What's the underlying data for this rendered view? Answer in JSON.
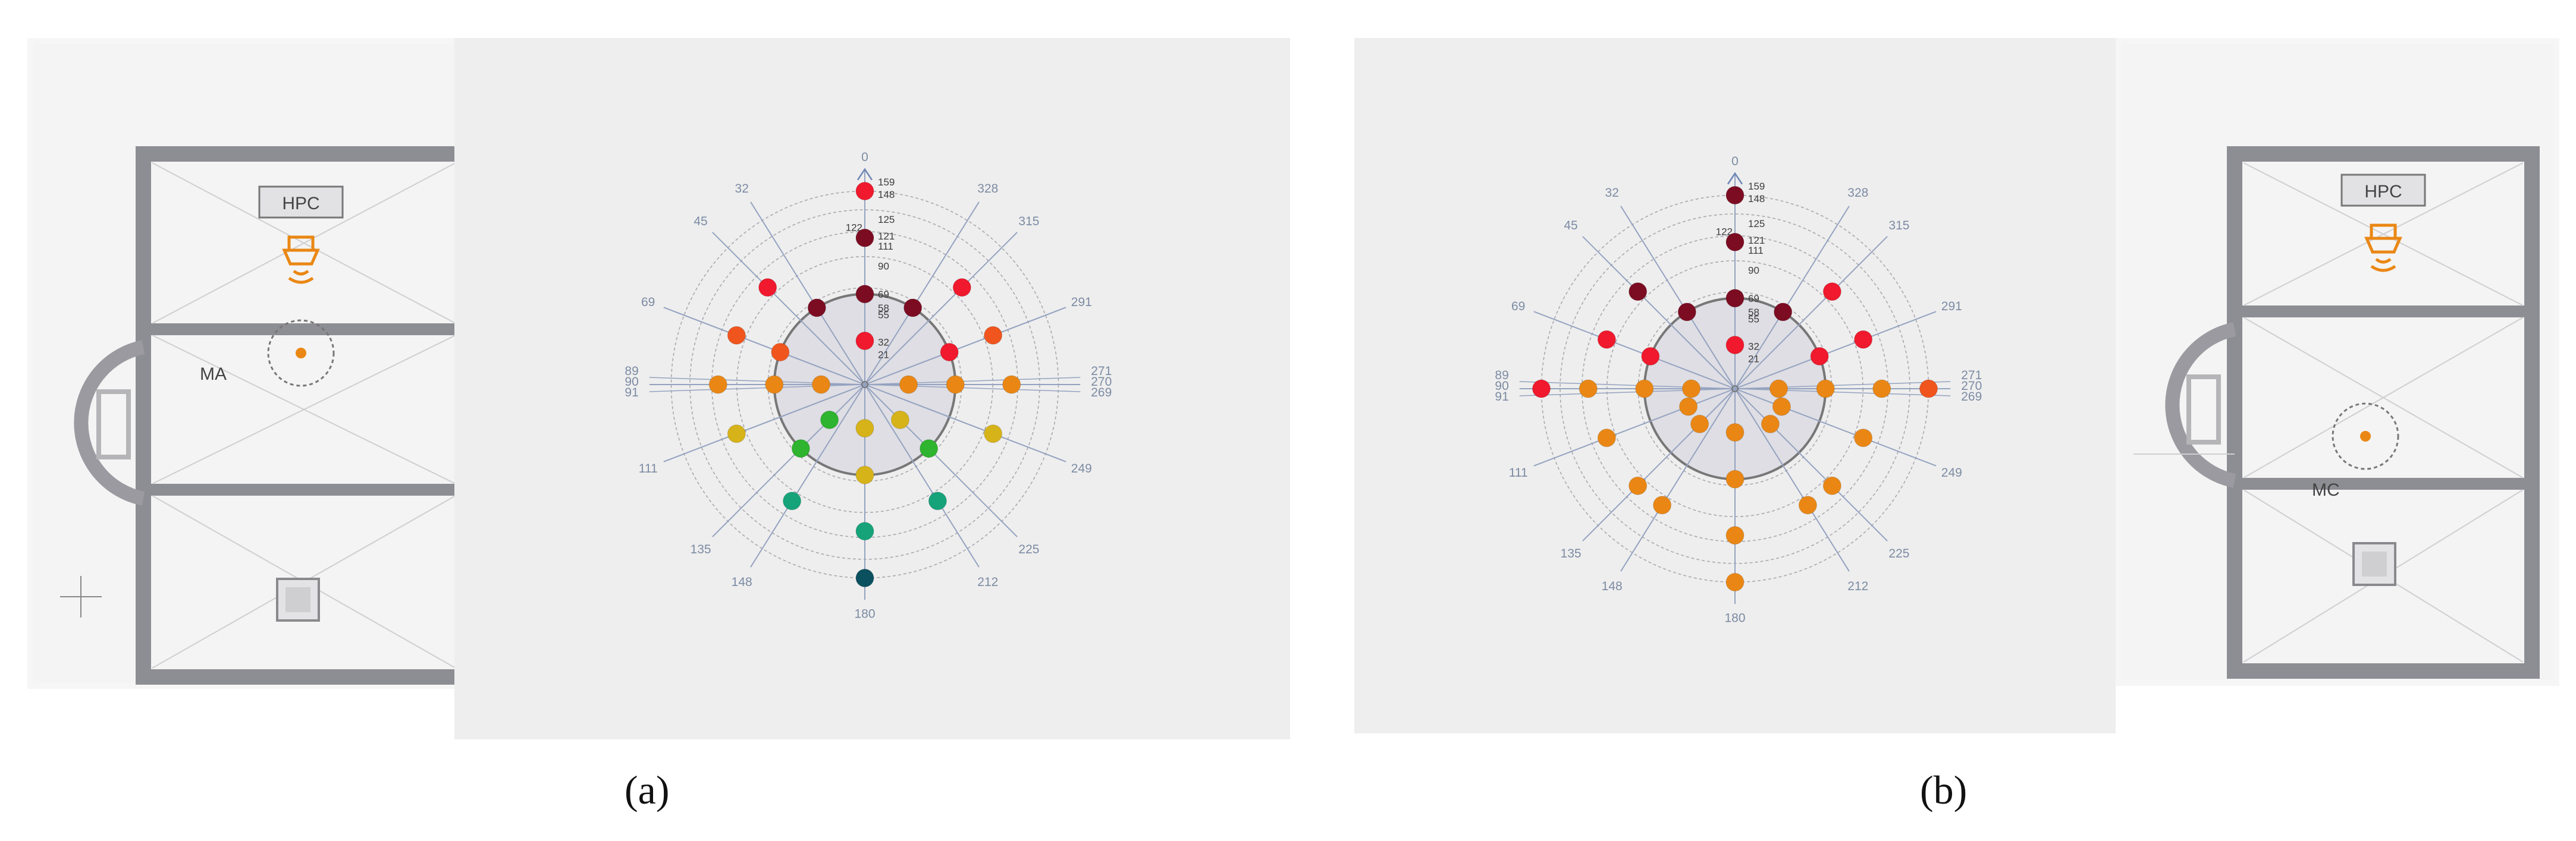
{
  "colors": {
    "red": "#f0192d",
    "darkred": "#7c0c22",
    "orange": "#ea8714",
    "redorange": "#f0551e",
    "yellow": "#d7b31a",
    "green": "#2eb42e",
    "teal": "#16a37a",
    "darkteal": "#0b505f"
  },
  "panels": [
    {
      "caption": "(a)",
      "room_labels": {
        "source": "HPC",
        "receiver": "MA"
      },
      "radial_labels": [
        "159",
        "148",
        "125",
        "122",
        "121",
        "111",
        "90",
        "69",
        "58",
        "55",
        "32",
        "21"
      ],
      "axis_labels": {
        "top": "0",
        "bottom": "180",
        "left": [
          "89",
          "90",
          "91"
        ],
        "right": [
          "271",
          "270",
          "269"
        ],
        "diagonals": [
          "32",
          "328",
          "45",
          "315",
          "69",
          "291",
          "111",
          "249",
          "135",
          "225",
          "148",
          "212"
        ]
      },
      "points": [
        {
          "angle": 0,
          "r": 1,
          "c": "red"
        },
        {
          "angle": 0,
          "r": 2,
          "c": "darkred"
        },
        {
          "angle": 0,
          "r": 3,
          "c": "darkred"
        },
        {
          "angle": 0,
          "r": 4,
          "c": "red"
        },
        {
          "angle": 32,
          "r": 3,
          "c": "darkred"
        },
        {
          "angle": 45,
          "r": 2,
          "c": "red"
        },
        {
          "angle": 69,
          "r": 2,
          "c": "redorange"
        },
        {
          "angle": 69,
          "r": 3,
          "c": "redorange"
        },
        {
          "angle": 90,
          "r": 1,
          "c": "orange"
        },
        {
          "angle": 90,
          "r": 2,
          "c": "orange"
        },
        {
          "angle": 90,
          "r": 3,
          "c": "orange"
        },
        {
          "angle": 328,
          "r": 3,
          "c": "darkred"
        },
        {
          "angle": 315,
          "r": 2,
          "c": "red"
        },
        {
          "angle": 291,
          "r": 2,
          "c": "redorange"
        },
        {
          "angle": 291,
          "r": 3,
          "c": "red"
        },
        {
          "angle": 270,
          "r": 1,
          "c": "orange"
        },
        {
          "angle": 270,
          "r": 2,
          "c": "orange"
        },
        {
          "angle": 270,
          "r": 3,
          "c": "orange"
        },
        {
          "angle": 111,
          "r": 2,
          "c": "yellow"
        },
        {
          "angle": 135,
          "r": 3,
          "c": "green"
        },
        {
          "angle": 135,
          "r": 1,
          "c": "green"
        },
        {
          "angle": 148,
          "r": 2,
          "c": "teal"
        },
        {
          "angle": 180,
          "r": 4,
          "c": "darkteal"
        },
        {
          "angle": 180,
          "r": 3,
          "c": "teal"
        },
        {
          "angle": 180,
          "r": 2,
          "c": "yellow"
        },
        {
          "angle": 180,
          "r": 1,
          "c": "yellow"
        },
        {
          "angle": 212,
          "r": 2,
          "c": "teal"
        },
        {
          "angle": 225,
          "r": 3,
          "c": "green"
        },
        {
          "angle": 225,
          "r": 1,
          "c": "yellow"
        },
        {
          "angle": 249,
          "r": 2,
          "c": "yellow"
        }
      ]
    },
    {
      "caption": "(b)",
      "room_labels": {
        "source": "HPC",
        "receiver": "MC"
      },
      "radial_labels": [
        "159",
        "148",
        "125",
        "122",
        "121",
        "111",
        "90",
        "69",
        "58",
        "55",
        "32",
        "21"
      ],
      "axis_labels": {
        "top": "0",
        "bottom": "180",
        "left": [
          "89",
          "90",
          "91"
        ],
        "right": [
          "271",
          "270",
          "269"
        ],
        "diagonals": [
          "32",
          "328",
          "45",
          "315",
          "69",
          "291",
          "111",
          "249",
          "135",
          "225",
          "148",
          "212"
        ]
      },
      "points": [
        {
          "angle": 0,
          "r": 1,
          "c": "red"
        },
        {
          "angle": 0,
          "r": 2,
          "c": "darkred"
        },
        {
          "angle": 0,
          "r": 3,
          "c": "darkred"
        },
        {
          "angle": 0,
          "r": 4,
          "c": "darkred"
        },
        {
          "angle": 32,
          "r": 3,
          "c": "darkred"
        },
        {
          "angle": 45,
          "r": 2,
          "c": "darkred"
        },
        {
          "angle": 69,
          "r": 2,
          "c": "red"
        },
        {
          "angle": 69,
          "r": 3,
          "c": "red"
        },
        {
          "angle": 90,
          "r": 1,
          "c": "orange"
        },
        {
          "angle": 90,
          "r": 2,
          "c": "orange"
        },
        {
          "angle": 90,
          "r": 3,
          "c": "orange"
        },
        {
          "angle": 90,
          "r": 4,
          "c": "red"
        },
        {
          "angle": 328,
          "r": 3,
          "c": "darkred"
        },
        {
          "angle": 315,
          "r": 2,
          "c": "red"
        },
        {
          "angle": 291,
          "r": 2,
          "c": "red"
        },
        {
          "angle": 291,
          "r": 3,
          "c": "red"
        },
        {
          "angle": 270,
          "r": 1,
          "c": "orange"
        },
        {
          "angle": 270,
          "r": 2,
          "c": "orange"
        },
        {
          "angle": 270,
          "r": 3,
          "c": "orange"
        },
        {
          "angle": 270,
          "r": 4,
          "c": "redorange"
        },
        {
          "angle": 111,
          "r": 2,
          "c": "orange"
        },
        {
          "angle": 111,
          "r": 1,
          "c": "orange"
        },
        {
          "angle": 135,
          "r": 1,
          "c": "orange"
        },
        {
          "angle": 135,
          "r": 2,
          "c": "orange"
        },
        {
          "angle": 148,
          "r": 2,
          "c": "orange"
        },
        {
          "angle": 180,
          "r": 1,
          "c": "orange"
        },
        {
          "angle": 180,
          "r": 2,
          "c": "orange"
        },
        {
          "angle": 180,
          "r": 3,
          "c": "orange"
        },
        {
          "angle": 180,
          "r": 4,
          "c": "orange"
        },
        {
          "angle": 212,
          "r": 2,
          "c": "orange"
        },
        {
          "angle": 225,
          "r": 1,
          "c": "orange"
        },
        {
          "angle": 225,
          "r": 2,
          "c": "orange"
        },
        {
          "angle": 249,
          "r": 2,
          "c": "orange"
        },
        {
          "angle": 249,
          "r": 1,
          "c": "orange"
        }
      ]
    }
  ]
}
